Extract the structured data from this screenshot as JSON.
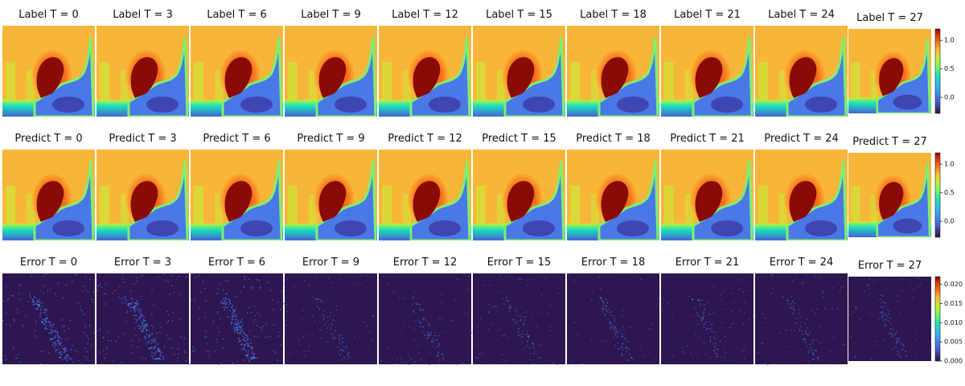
{
  "chart_data": [
    {
      "type": "heatmap",
      "titles": [
        "Label T = 0",
        "Label T = 3",
        "Label T = 6",
        "Label T = 9",
        "Label T = 12",
        "Label T = 15",
        "Label T = 18",
        "Label T = 21",
        "Label T = 24",
        "Label T = 27"
      ],
      "zlim": [
        -0.28,
        1.2
      ],
      "zticks": [
        {
          "value": 0,
          "label": "0.0"
        },
        {
          "value": 0.5,
          "label": "0.5"
        },
        {
          "value": 1,
          "label": "1.0"
        }
      ]
    },
    {
      "type": "heatmap",
      "titles": [
        "Predict T = 0",
        "Predict T = 3",
        "Predict T = 6",
        "Predict T = 9",
        "Predict T = 12",
        "Predict T = 15",
        "Predict T = 18",
        "Predict T = 21",
        "Predict T = 24",
        "Predict T = 27"
      ],
      "zlim": [
        -0.28,
        1.2
      ],
      "zticks": [
        {
          "value": 0,
          "label": "0.0"
        },
        {
          "value": 0.5,
          "label": "0.5"
        },
        {
          "value": 1,
          "label": "1.0"
        }
      ]
    },
    {
      "type": "error-heatmap",
      "titles": [
        "Error T = 0",
        "Error T = 3",
        "Error T = 6",
        "Error T = 9",
        "Error T = 12",
        "Error T = 15",
        "Error T = 18",
        "Error T = 21",
        "Error T = 24",
        "Error T = 27"
      ],
      "zlim": [
        0,
        0.022
      ],
      "zticks": [
        {
          "value": 0,
          "label": "0.000"
        },
        {
          "value": 0.005,
          "label": "0.005"
        },
        {
          "value": 0.01,
          "label": "0.010"
        },
        {
          "value": 0.015,
          "label": "0.015"
        },
        {
          "value": 0.02,
          "label": "0.020"
        }
      ]
    }
  ]
}
